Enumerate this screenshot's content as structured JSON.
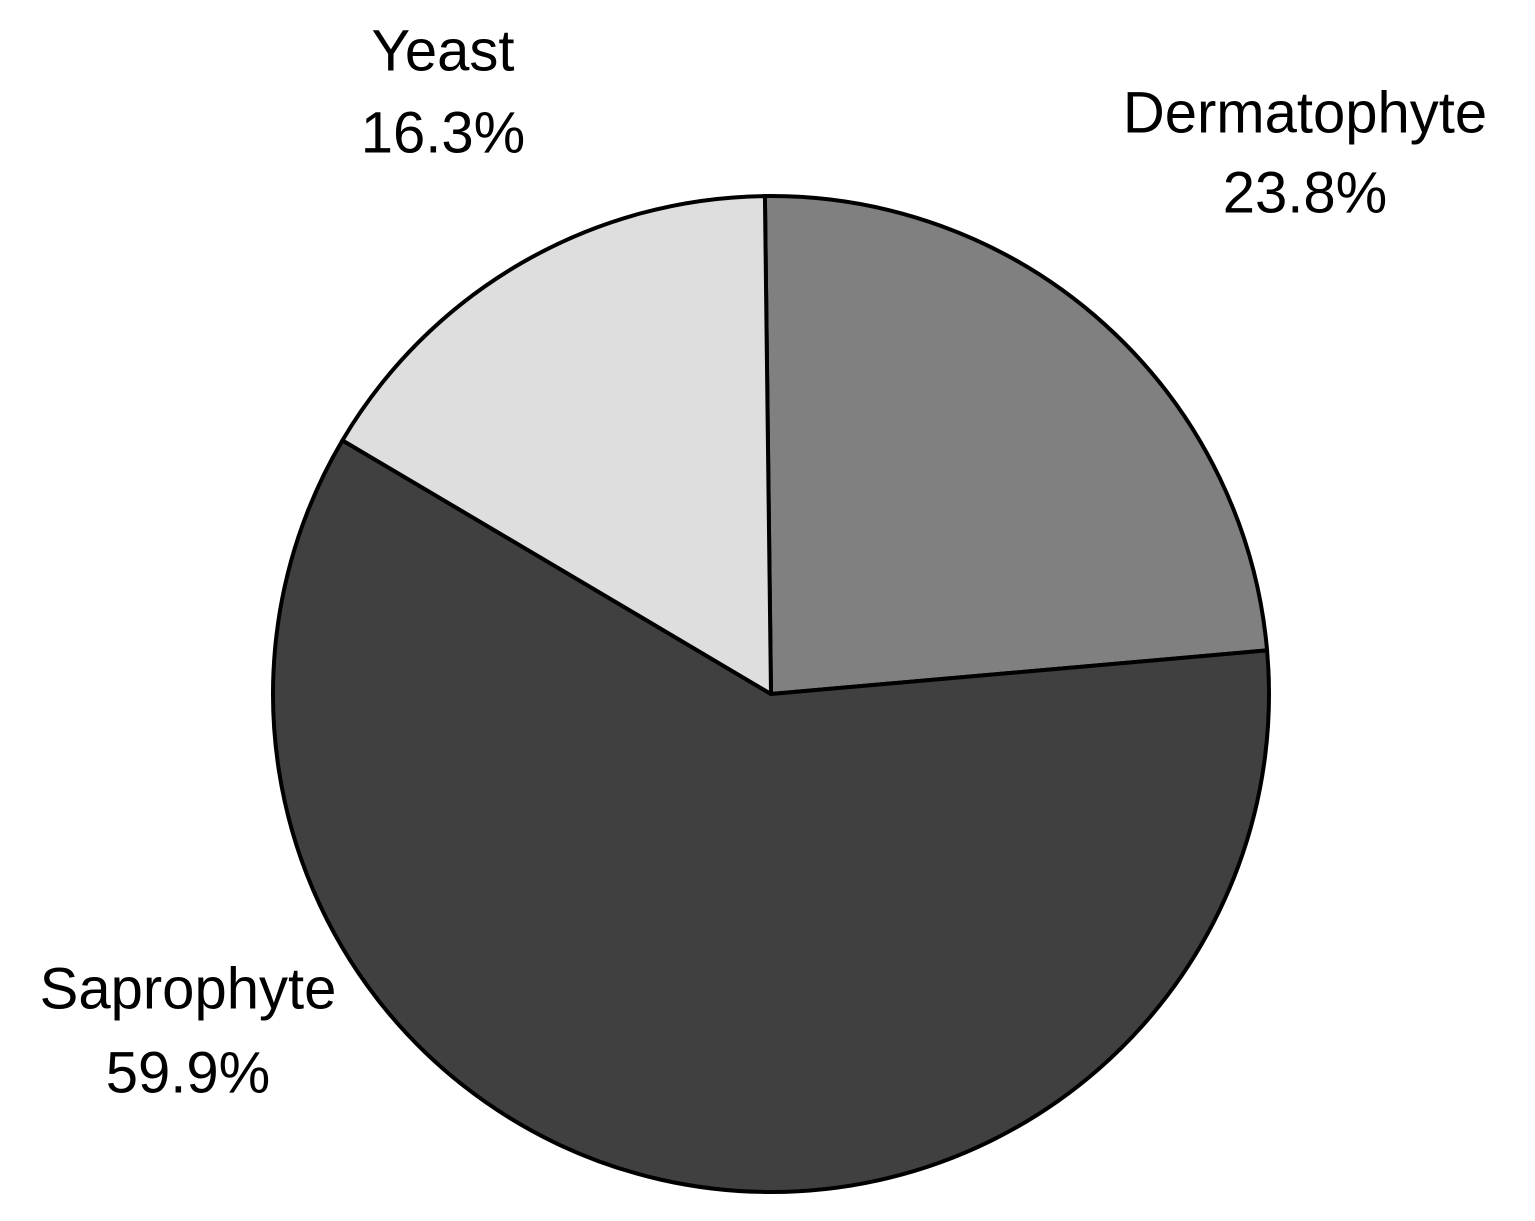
{
  "chart_data": {
    "type": "pie",
    "categories": [
      "Dermatophyte",
      "Saprophyte",
      "Yeast"
    ],
    "values": [
      23.8,
      59.9,
      16.3
    ],
    "value_labels": [
      "23.8%",
      "59.9%",
      "16.3%"
    ],
    "colors": [
      "#808080",
      "#404040",
      "#dedede"
    ]
  }
}
